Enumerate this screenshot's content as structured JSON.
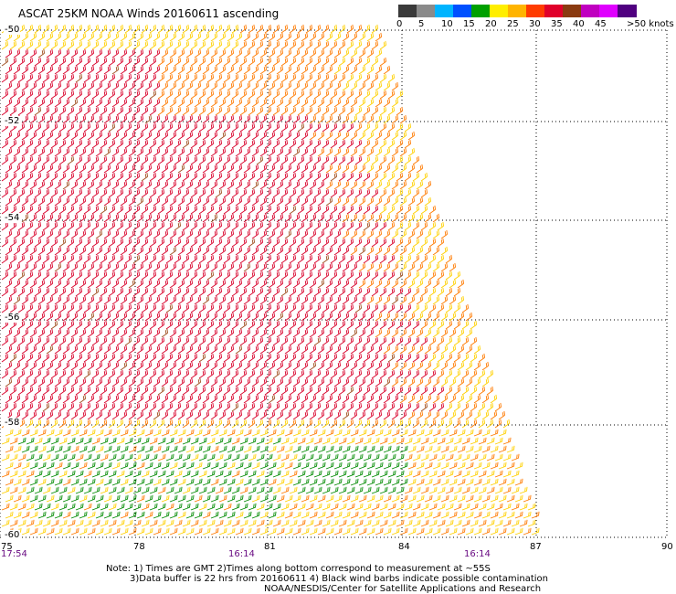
{
  "title": "ASCAT 25KM NOAA Winds 20160611 ascending",
  "legend": {
    "unit": ">50 knots",
    "labels": [
      "0",
      "5",
      "10",
      "15",
      "20",
      "25",
      "30",
      "35",
      "40",
      "45",
      ">50 knots"
    ],
    "colors": [
      "#3a3a3a",
      "#8a8a8a",
      "#00b4ff",
      "#0050ff",
      "#00a000",
      "#ffee00",
      "#ffb400",
      "#ff3c00",
      "#e0002a",
      "#8a3a10",
      "#c000c0",
      "#e000ff",
      "#500080"
    ]
  },
  "axes": {
    "lon_labels": [
      "75",
      "78",
      "81",
      "84",
      "87",
      "90"
    ],
    "lat_labels": [
      "-50",
      "-52",
      "-54",
      "-56",
      "-58",
      "-60"
    ],
    "time_labels": [
      "17:54",
      "16:14",
      "16:14"
    ]
  },
  "notes": {
    "line1": "Note: 1) Times are GMT 2)Times along bottom correspond to measurement at ~55S",
    "line2": "3)Data buffer is 22 hrs from 20160611 4) Black wind barbs indicate possible contamination",
    "line3": "NOAA/NESDIS/Center for Satellite Applications and Research"
  },
  "map": {
    "icon": "wind-barb-field",
    "barb_colors": {
      "red": "#d8002a",
      "orange": "#ff7a00",
      "yellow": "#ffd000",
      "green": "#008a00",
      "brown": "#a05020"
    }
  }
}
